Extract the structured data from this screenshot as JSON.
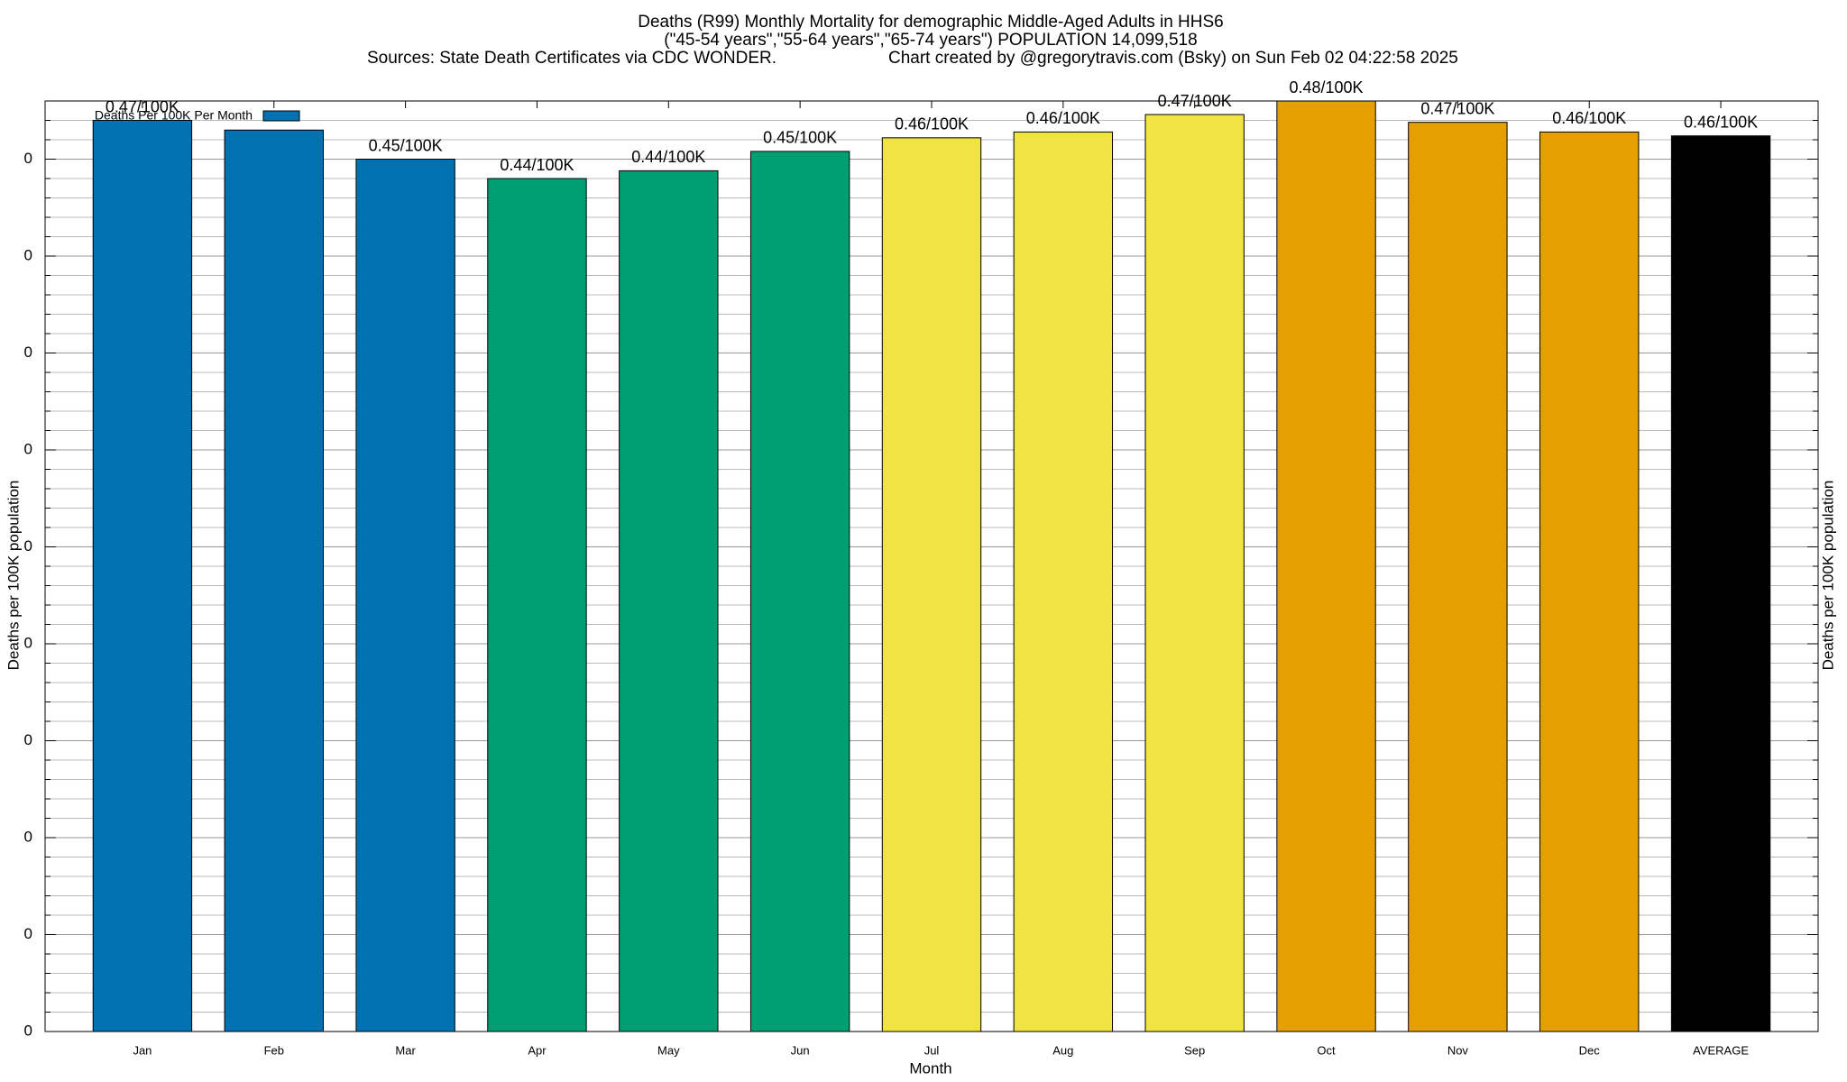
{
  "chart_data": {
    "type": "bar",
    "title": "Deaths (R99) Monthly Mortality for demographic Middle-Aged Adults in HHS6",
    "subtitle": "(\"45-54 years\",\"55-64 years\",\"65-74 years\") POPULATION 14,099,518",
    "source": "Sources: State Death Certificates via CDC WONDER.",
    "credit": "Chart created by @gregorytravis.com (Bsky) on Sun Feb 02 04:22:58 2025",
    "xlabel": "Month",
    "ylabel": "Deaths per 100K population",
    "y2label": "Deaths per 100K population",
    "legend": "Deaths Per 100K Per Month",
    "legend_color": "#0072b2",
    "legend_position": "upper-left",
    "categories": [
      "Jan",
      "Feb",
      "Mar",
      "Apr",
      "May",
      "Jun",
      "Jul",
      "Aug",
      "Sep",
      "Oct",
      "Nov",
      "Dec",
      "AVERAGE"
    ],
    "values": [
      0.47,
      0.465,
      0.45,
      0.44,
      0.444,
      0.454,
      0.461,
      0.464,
      0.473,
      0.48,
      0.469,
      0.464,
      0.462
    ],
    "value_labels": [
      "0.47/100K",
      null,
      "0.45/100K",
      "0.44/100K",
      "0.44/100K",
      "0.45/100K",
      "0.46/100K",
      "0.46/100K",
      "0.47/100K",
      "0.48/100K",
      "0.47/100K",
      "0.46/100K",
      "0.46/100K"
    ],
    "colors": [
      "#0072b2",
      "#0072b2",
      "#0072b2",
      "#009e73",
      "#009e73",
      "#009e73",
      "#f0e442",
      "#f0e442",
      "#f0e442",
      "#e69f00",
      "#e69f00",
      "#e69f00",
      "#000000"
    ],
    "ylim": [
      0,
      0.48
    ],
    "yticks": [
      0,
      {
        "value": 0.05,
        "label": "0"
      },
      {
        "value": 0.1,
        "label": "0"
      },
      {
        "value": 0.15,
        "label": "0"
      },
      {
        "value": 0.2,
        "label": "0"
      },
      {
        "value": 0.25,
        "label": "0"
      },
      {
        "value": 0.3,
        "label": "0"
      },
      {
        "value": 0.35,
        "label": "0"
      },
      {
        "value": 0.4,
        "label": "0"
      },
      {
        "value": 0.45,
        "label": "0"
      }
    ],
    "yminorticks": [
      0.01,
      0.02,
      0.03,
      0.04,
      0.06,
      0.07,
      0.08,
      0.09,
      0.11,
      0.12,
      0.13,
      0.14,
      0.16,
      0.17,
      0.18,
      0.19,
      0.21,
      0.22,
      0.23,
      0.24,
      0.26,
      0.27,
      0.28,
      0.29,
      0.31,
      0.32,
      0.33,
      0.34,
      0.36,
      0.37,
      0.38,
      0.39,
      0.41,
      0.42,
      0.43,
      0.44,
      0.46,
      0.47
    ],
    "grid": true
  }
}
